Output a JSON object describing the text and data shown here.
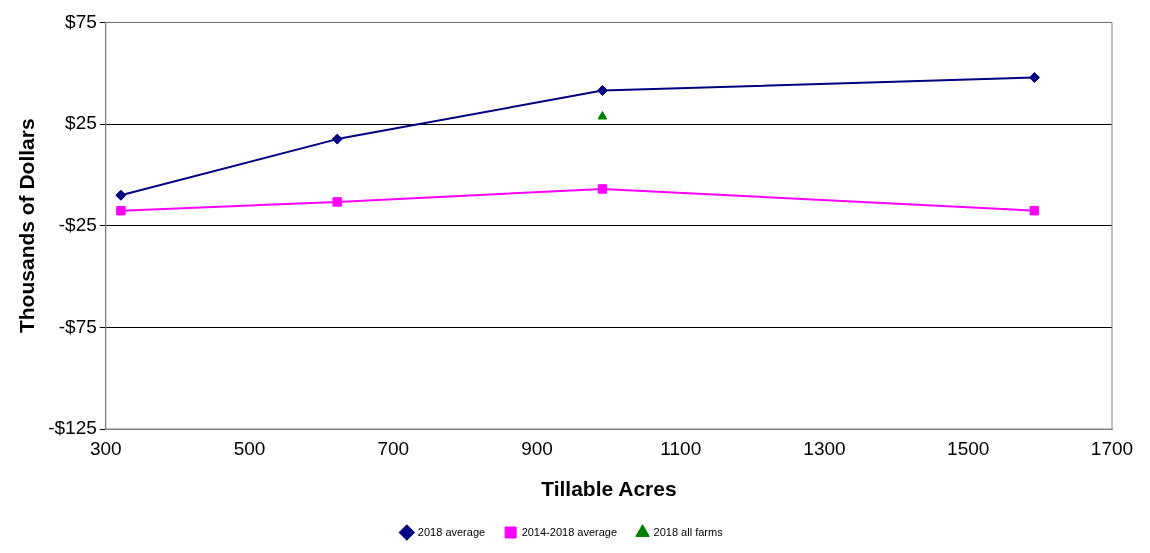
{
  "chart_data": {
    "type": "line",
    "xlabel": "Tillable Acres",
    "ylabel": "Thousands of Dollars",
    "xlim": [
      300,
      1700
    ],
    "xticks": [
      300,
      500,
      700,
      900,
      1100,
      1300,
      1500,
      1700
    ],
    "ylim": [
      -125,
      75
    ],
    "yticks": [
      {
        "value": -125,
        "label": "-$125"
      },
      {
        "value": -75,
        "label": "-$75"
      },
      {
        "value": -25,
        "label": "-$25"
      },
      {
        "value": 25,
        "label": "$25"
      },
      {
        "value": 75,
        "label": "$75"
      }
    ],
    "grid": "y",
    "legend": "bottom",
    "series": [
      {
        "name": "2018 average",
        "color": "#000080",
        "marker": "diamond",
        "x": [
          321,
          622,
          991,
          1592
        ],
        "values": [
          -10,
          17.6,
          41.5,
          47.9
        ]
      },
      {
        "name": "2014-2018 average",
        "color": "#ff00ff",
        "marker": "square",
        "x": [
          321,
          622,
          991,
          1592
        ],
        "values": [
          -17.6,
          -13.3,
          -6.9,
          -17.6
        ]
      },
      {
        "name": "2018 all farms",
        "color": "#008000",
        "marker": "triangle",
        "type": "scatter",
        "x": [
          991
        ],
        "values": [
          28.7
        ]
      }
    ]
  }
}
